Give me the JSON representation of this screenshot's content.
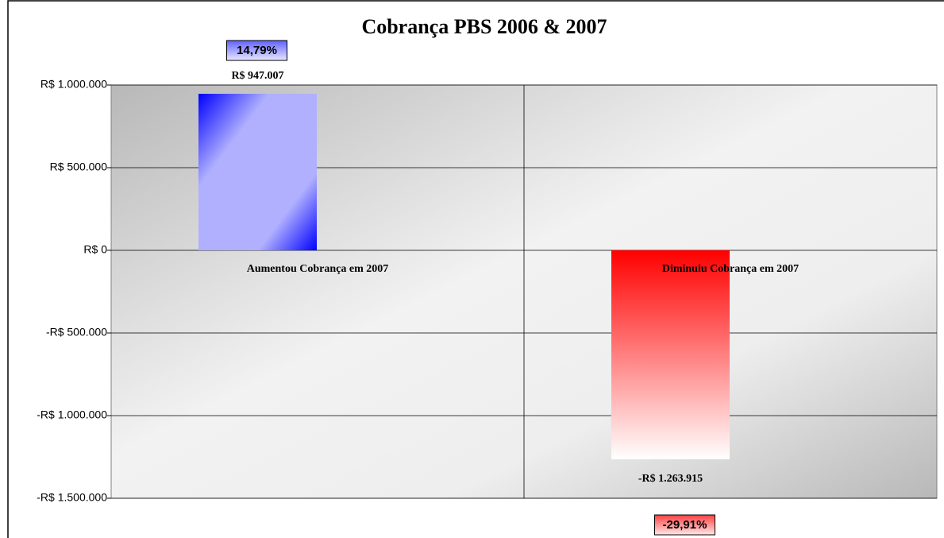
{
  "chart_data": {
    "type": "bar",
    "title": "Cobrança PBS 2006 & 2007",
    "categories": [
      "Aumentou Cobrança em 2007",
      "Diminuiu Cobrança em 2007"
    ],
    "values": [
      947007,
      -1263915
    ],
    "value_labels": [
      "R$ 947.007",
      "-R$ 1.263.915"
    ],
    "colors": [
      "#0000ff",
      "#ff0000"
    ],
    "annotations": [
      "14,79%",
      "-29,91%"
    ],
    "ylim": [
      -1500000,
      1000000
    ],
    "yticks": [
      {
        "value": -1500000,
        "label": "-R$ 1.500.000"
      },
      {
        "value": -1000000,
        "label": "-R$ 1.000.000"
      },
      {
        "value": -500000,
        "label": "-R$ 500.000"
      },
      {
        "value": 0,
        "label": "R$ 0"
      },
      {
        "value": 500000,
        "label": "R$ 500.000"
      },
      {
        "value": 1000000,
        "label": "R$ 1.000.000"
      }
    ],
    "grid": true
  }
}
